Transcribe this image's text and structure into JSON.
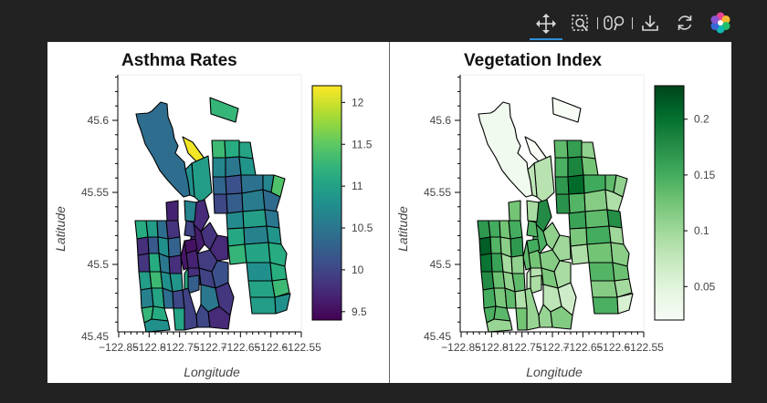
{
  "toolbar": {
    "tools": [
      {
        "name": "pan-tool",
        "icon": "move-arrows-icon",
        "active": true
      },
      {
        "name": "box-zoom-tool",
        "icon": "zoom-box-icon"
      },
      {
        "name": "wheel-zoom-tool",
        "icon": "wheel-zoom-icon"
      },
      {
        "name": "save-tool",
        "icon": "download-icon"
      },
      {
        "name": "reset-tool",
        "icon": "refresh-icon"
      },
      {
        "name": "bokeh-logo",
        "icon": "bokeh-logo-icon"
      }
    ]
  },
  "chart_data": [
    {
      "type": "heatmap",
      "title": "Asthma Rates",
      "xlabel": "Longitude",
      "ylabel": "Latitude",
      "x_ticks": [
        "−122.85",
        "−122.8",
        "−122.75",
        "−122.7",
        "−122.65",
        "−122.6",
        "−122.55"
      ],
      "y_ticks": [
        "45.45",
        "45.5",
        "45.55",
        "45.6"
      ],
      "colorbar": {
        "palette": "viridis",
        "min": 9.4,
        "max": 12.2,
        "ticks": [
          "9.5",
          "10",
          "10.5",
          "11",
          "11.5",
          "12"
        ]
      },
      "xlim": [
        -122.86,
        -122.55
      ],
      "ylim": [
        45.415,
        45.645
      ]
    },
    {
      "type": "heatmap",
      "title": "Vegetation Index",
      "xlabel": "Longitude",
      "ylabel": "Latitude",
      "x_ticks": [
        "−122.85",
        "−122.8",
        "−122.75",
        "−122.7",
        "−122.65",
        "−122.6",
        "−122.55"
      ],
      "y_ticks": [
        "45.45",
        "45.5",
        "45.55",
        "45.6"
      ],
      "colorbar": {
        "palette": "greens",
        "min": 0.02,
        "max": 0.23,
        "ticks": [
          "0.05",
          "0.1",
          "0.15",
          "0.2"
        ]
      },
      "xlim": [
        -122.86,
        -122.55
      ],
      "ylim": [
        45.415,
        45.645
      ]
    }
  ]
}
